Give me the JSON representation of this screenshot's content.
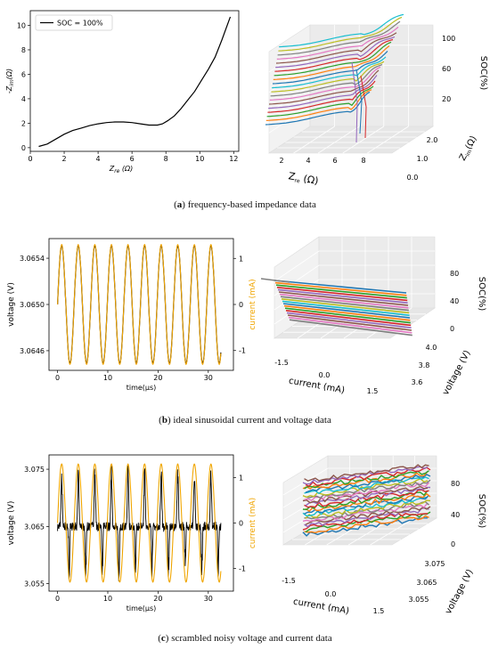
{
  "captions": [
    {
      "label": "a",
      "text": "frequency-based impedance data"
    },
    {
      "label": "b",
      "text": "ideal sinusoidal current and voltage data"
    },
    {
      "label": "c",
      "text": "scrambled noisy voltage and current data"
    }
  ],
  "chart_data": [
    {
      "id": "a-left",
      "type": "line",
      "title": "",
      "xlabel": "Z_re (Ω)",
      "ylabel": "-Z_im(Ω)",
      "xlim": [
        0,
        12.3
      ],
      "ylim": [
        -0.3,
        11.2
      ],
      "xticks": [
        0,
        2,
        4,
        6,
        8,
        10,
        12
      ],
      "yticks": [
        0,
        2,
        4,
        6,
        8,
        10
      ],
      "legend": {
        "position": "top-left",
        "entries": [
          "SOC = 100%"
        ]
      },
      "series": [
        {
          "name": "SOC = 100%",
          "color": "#000000",
          "x": [
            0.5,
            1.0,
            1.5,
            2.0,
            2.5,
            3.0,
            3.5,
            4.0,
            4.5,
            5.0,
            5.5,
            6.0,
            6.5,
            7.0,
            7.5,
            7.8,
            8.1,
            8.5,
            8.9,
            9.3,
            9.7,
            10.1,
            10.5,
            10.9,
            11.3,
            11.8
          ],
          "y": [
            0.1,
            0.3,
            0.7,
            1.1,
            1.4,
            1.6,
            1.8,
            1.95,
            2.05,
            2.1,
            2.1,
            2.05,
            1.95,
            1.85,
            1.85,
            1.95,
            2.2,
            2.6,
            3.2,
            3.9,
            4.6,
            5.5,
            6.4,
            7.4,
            8.8,
            10.7
          ]
        }
      ]
    },
    {
      "id": "a-right",
      "type": "line",
      "title": "",
      "xlabel": "Z_re (Ω)",
      "ylabel": "Z_im(Ω)",
      "zlabel": "SOC(%)",
      "xticks": [
        2,
        4,
        6,
        8
      ],
      "yticks": [
        0.0,
        1.0,
        2.0
      ],
      "zticks": [
        20,
        60,
        100
      ],
      "soc_levels": [
        5,
        10,
        15,
        20,
        25,
        30,
        35,
        40,
        45,
        50,
        55,
        60,
        65,
        70,
        75,
        80,
        85,
        90,
        95,
        100
      ]
    },
    {
      "id": "b-left",
      "type": "line",
      "title": "",
      "xlabel": "time(µs)",
      "ylabel": "voltage (V)",
      "y2label": "current (mA)",
      "xlim": [
        -1.7,
        35
      ],
      "ylim": [
        3.06443,
        3.06557
      ],
      "y2lim": [
        -1.43,
        1.43
      ],
      "xticks": [
        0,
        10,
        20,
        30
      ],
      "yticks": [
        "3.0646",
        "3.0650",
        "3.0654"
      ],
      "y2ticks": [
        "-1",
        "0",
        "1"
      ],
      "signal": {
        "t_start": 0,
        "t_end": 32.5,
        "period": 3.3,
        "v_offset": 3.065,
        "v_amplitude": 0.00051,
        "i_amplitude": 1.3
      },
      "series": [
        {
          "name": "voltage (V)",
          "color": "#000000"
        },
        {
          "name": "current (mA)",
          "color": "#f0a500"
        }
      ]
    },
    {
      "id": "b-right",
      "type": "line",
      "title": "",
      "xlabel": "current (mA)",
      "ylabel": "voltage (V)",
      "zlabel": "SOC(%)",
      "xticks": [
        "-1.5",
        "0.0",
        "1.5"
      ],
      "yticks": [
        "3.6",
        "3.8",
        "4.0"
      ],
      "zticks": [
        "0",
        "40",
        "80"
      ]
    },
    {
      "id": "c-left",
      "type": "line",
      "title": "",
      "xlabel": "time(µs)",
      "ylabel": "voltage (V)",
      "y2label": "current (mA)",
      "xlim": [
        -1.7,
        35
      ],
      "ylim": [
        3.0537,
        3.0775
      ],
      "y2lim": [
        -1.5,
        1.5
      ],
      "xticks": [
        0,
        10,
        20,
        30
      ],
      "yticks": [
        "3.055",
        "3.065",
        "3.075"
      ],
      "y2ticks": [
        "-1",
        "0",
        "1"
      ],
      "signal": {
        "t_start": 0,
        "t_end": 32.5,
        "period": 3.3,
        "v_offset": 3.065,
        "v_peak": 3.0755,
        "v_trough": 3.0553,
        "i_amplitude": 1.3
      },
      "series": [
        {
          "name": "voltage (V)",
          "color": "#000000"
        },
        {
          "name": "current (mA)",
          "color": "#f0a500"
        }
      ]
    },
    {
      "id": "c-right",
      "type": "line",
      "title": "",
      "xlabel": "current (mA)",
      "ylabel": "voltage (V)",
      "zlabel": "SOC(%)",
      "xticks": [
        "-1.5",
        "0.0",
        "1.5"
      ],
      "yticks": [
        "3.055",
        "3.065",
        "3.075"
      ],
      "zticks": [
        "0",
        "40",
        "80"
      ]
    }
  ],
  "palette": [
    "#1f77b4",
    "#ff7f0e",
    "#2ca02c",
    "#d62728",
    "#9467bd",
    "#8c564b",
    "#e377c2",
    "#7f7f7f",
    "#bcbd22",
    "#17becf"
  ]
}
